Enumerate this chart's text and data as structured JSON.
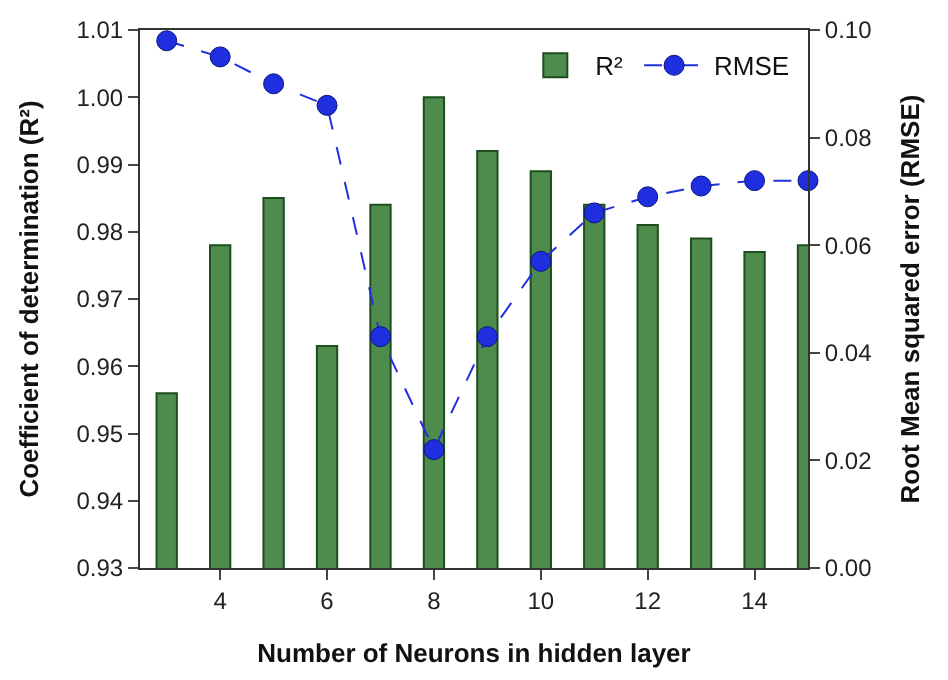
{
  "chart_data": {
    "type": "bar",
    "xlabel": "Number of Neurons in hidden layer",
    "ylabel": "Coefficient of determination (R²)",
    "y2label": "Root Mean squared error (RMSE)",
    "x": [
      3,
      4,
      5,
      6,
      7,
      8,
      9,
      10,
      11,
      12,
      13,
      14,
      15
    ],
    "series": [
      {
        "name": "R²",
        "color": "#4e8c4e",
        "values": [
          0.956,
          0.978,
          0.985,
          0.963,
          0.984,
          1.0,
          0.992,
          0.989,
          0.984,
          0.981,
          0.979,
          0.977,
          0.978
        ]
      },
      {
        "name": "RMSE",
        "type": "line",
        "axis": "y2",
        "color": "#1f2fe0",
        "marker": "circle",
        "line_style": "dashed",
        "values": [
          0.098,
          0.095,
          0.09,
          0.086,
          0.043,
          0.022,
          0.043,
          0.057,
          0.066,
          0.069,
          0.071,
          0.072,
          0.072
        ]
      }
    ],
    "xlim": [
      2.5,
      15
    ],
    "xticks": [
      4,
      6,
      8,
      10,
      12,
      14
    ],
    "ylim": [
      0.93,
      1.01
    ],
    "yticks": [
      {
        "value": 0.93,
        "label": "0.93"
      },
      {
        "value": 0.94,
        "label": "0.94"
      },
      {
        "value": 0.95,
        "label": "0.95"
      },
      {
        "value": 0.96,
        "label": "0.96"
      },
      {
        "value": 0.97,
        "label": "0.97"
      },
      {
        "value": 0.98,
        "label": "0.98"
      },
      {
        "value": 0.99,
        "label": "0.99"
      },
      {
        "value": 1.0,
        "label": "1.00"
      },
      {
        "value": 1.01,
        "label": "1.01"
      }
    ],
    "y2lim": [
      0,
      0.1
    ],
    "y2ticks": [
      {
        "value": 0,
        "label": "0.00"
      },
      {
        "value": 0.02,
        "label": "0.02"
      },
      {
        "value": 0.04,
        "label": "0.04"
      },
      {
        "value": 0.06,
        "label": "0.06"
      },
      {
        "value": 0.08,
        "label": "0.08"
      },
      {
        "value": 0.1,
        "label": "0.10"
      }
    ],
    "legend": "top right"
  }
}
